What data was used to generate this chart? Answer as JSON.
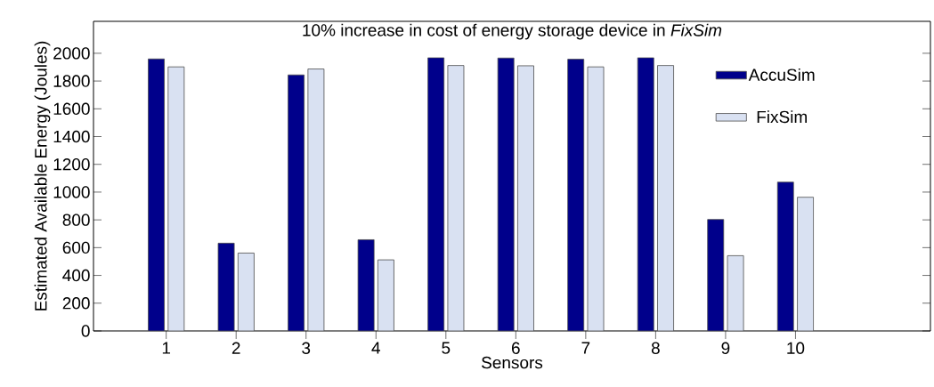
{
  "chart_data": {
    "type": "bar",
    "title": "10% increase in cost of energy storage device in *FixSim*",
    "xlabel": "Sensors",
    "ylabel": "Estimated Available Energy (Joules)",
    "categories": [
      "1",
      "2",
      "3",
      "4",
      "5",
      "6",
      "7",
      "8",
      "9",
      "10"
    ],
    "series": [
      {
        "name": "AccuSim",
        "color": "#00008b",
        "values": [
          1959,
          632,
          1844,
          657,
          1968,
          1966,
          1957,
          1968,
          803,
          1072
        ]
      },
      {
        "name": "FixSim",
        "color": "#d9e1f2",
        "values": [
          1902,
          561,
          1887,
          512,
          1912,
          1910,
          1902,
          1912,
          542,
          963
        ]
      }
    ],
    "ylim": [
      0,
      2230
    ],
    "yticks": [
      0,
      200,
      400,
      600,
      800,
      1000,
      1200,
      1400,
      1600,
      1800,
      2000
    ],
    "grid": false,
    "legend": "top right"
  }
}
